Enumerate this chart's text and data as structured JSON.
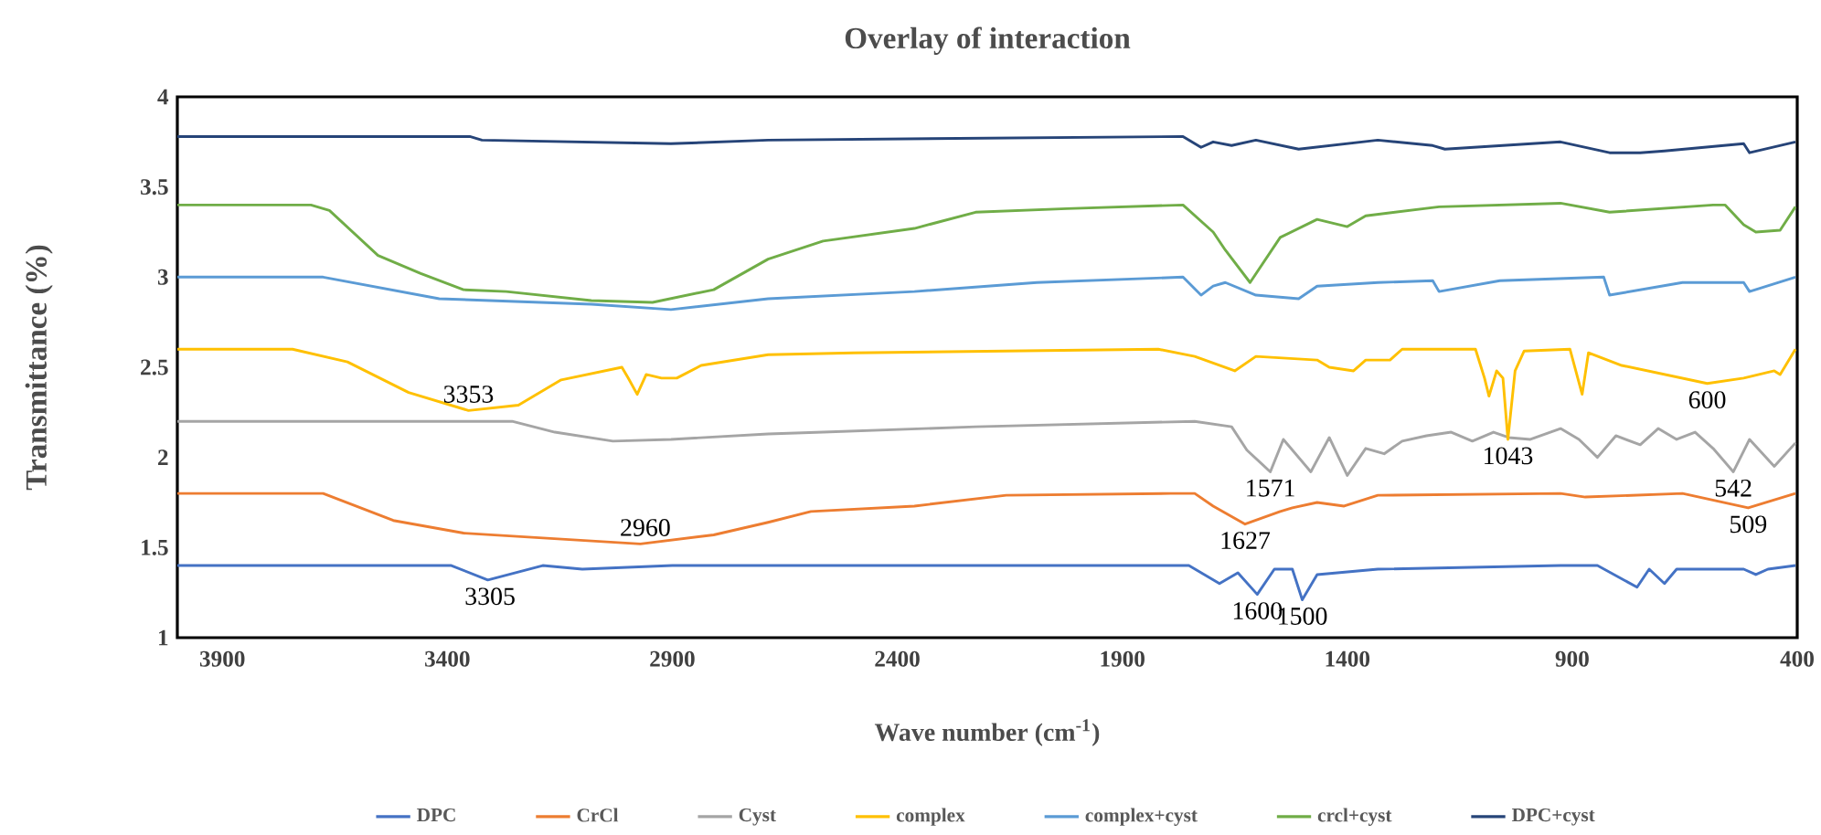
{
  "chart_data": {
    "type": "line",
    "title": "Overlay of interaction",
    "xlabel": "Wave number (cm$^{-1}$)",
    "ylabel": "Transmittance (%)",
    "xlim": [
      4000,
      400
    ],
    "xticks": [
      3900,
      3400,
      2900,
      2400,
      1900,
      1400,
      900,
      400
    ],
    "ylim": [
      1,
      4
    ],
    "yticks": [
      1,
      1.5,
      2,
      2.5,
      3,
      3.5,
      4
    ],
    "grid": false,
    "legend": "bottom",
    "marker": "none",
    "line_style": "solid",
    "series": [
      {
        "name": "DPC",
        "color": "#4472c4",
        "x": [
          4000,
          3391,
          3310,
          3188,
          3100,
          2900,
          1752,
          1684,
          1643,
          1600,
          1562,
          1522,
          1500,
          1467,
          1332,
          926,
          844,
          756,
          729,
          695,
          668,
          519,
          492,
          465,
          404
        ],
        "values": [
          1.4,
          1.4,
          1.32,
          1.4,
          1.38,
          1.4,
          1.4,
          1.3,
          1.36,
          1.24,
          1.38,
          1.38,
          1.21,
          1.35,
          1.38,
          1.4,
          1.4,
          1.28,
          1.38,
          1.3,
          1.38,
          1.38,
          1.35,
          1.38,
          1.4
        ]
      },
      {
        "name": "CrCl",
        "color": "#ed7d31",
        "x": [
          4000,
          3676,
          3520,
          3364,
          2971,
          2808,
          2687,
          2592,
          2362,
          2158,
          1792,
          1739,
          1698,
          1627,
          1549,
          1522,
          1467,
          1407,
          1332,
          926,
          871,
          655,
          509,
          404
        ],
        "values": [
          1.8,
          1.8,
          1.65,
          1.58,
          1.52,
          1.57,
          1.64,
          1.7,
          1.73,
          1.79,
          1.8,
          1.8,
          1.73,
          1.63,
          1.7,
          1.72,
          1.75,
          1.73,
          1.79,
          1.8,
          1.78,
          1.8,
          1.72,
          1.8
        ]
      },
      {
        "name": "Cyst",
        "color": "#a5a5a5",
        "x": [
          4000,
          3256,
          3161,
          3032,
          2903,
          2687,
          2565,
          2226,
          1739,
          1657,
          1623,
          1571,
          1542,
          1481,
          1440,
          1400,
          1359,
          1318,
          1278,
          1224,
          1169,
          1122,
          1075,
          1041,
          993,
          926,
          885,
          844,
          803,
          749,
          709,
          668,
          627,
          587,
          542,
          506,
          451,
          404
        ],
        "values": [
          2.2,
          2.2,
          2.14,
          2.09,
          2.1,
          2.13,
          2.14,
          2.17,
          2.2,
          2.17,
          2.04,
          1.92,
          2.1,
          1.92,
          2.11,
          1.9,
          2.05,
          2.02,
          2.09,
          2.12,
          2.14,
          2.09,
          2.14,
          2.11,
          2.1,
          2.16,
          2.1,
          2.0,
          2.12,
          2.07,
          2.16,
          2.1,
          2.14,
          2.05,
          1.92,
          2.1,
          1.95,
          2.08
        ]
      },
      {
        "name": "complex",
        "color": "#ffc000",
        "x": [
          4000,
          3744,
          3622,
          3486,
          3353,
          3242,
          3147,
          3012,
          2998,
          2978,
          2958,
          2924,
          2890,
          2836,
          2687,
          2497,
          1820,
          1739,
          1650,
          1603,
          1467,
          1440,
          1386,
          1359,
          1305,
          1278,
          1115,
          1095,
          1085,
          1068,
          1054,
          1043,
          1027,
          1007,
          905,
          878,
          864,
          790,
          600,
          519,
          451,
          438,
          404
        ],
        "values": [
          2.6,
          2.6,
          2.53,
          2.36,
          2.26,
          2.29,
          2.43,
          2.5,
          2.44,
          2.35,
          2.46,
          2.44,
          2.44,
          2.51,
          2.57,
          2.58,
          2.6,
          2.56,
          2.48,
          2.56,
          2.54,
          2.5,
          2.48,
          2.54,
          2.54,
          2.6,
          2.6,
          2.44,
          2.34,
          2.48,
          2.44,
          2.1,
          2.48,
          2.59,
          2.6,
          2.35,
          2.58,
          2.51,
          2.41,
          2.44,
          2.48,
          2.46,
          2.6
        ]
      },
      {
        "name": "complex+cyst",
        "color": "#5b9bd5",
        "x": [
          4000,
          3676,
          3418,
          3080,
          2903,
          2687,
          2362,
          2090,
          1765,
          1725,
          1698,
          1671,
          1603,
          1508,
          1467,
          1332,
          1210,
          1196,
          1061,
          830,
          817,
          655,
          519,
          506,
          404
        ],
        "values": [
          3.0,
          3.0,
          2.88,
          2.85,
          2.82,
          2.88,
          2.92,
          2.97,
          3.0,
          2.9,
          2.95,
          2.97,
          2.9,
          2.88,
          2.95,
          2.97,
          2.98,
          2.92,
          2.98,
          3.0,
          2.9,
          2.97,
          2.97,
          2.92,
          3.0
        ]
      },
      {
        "name": "crcl+cyst",
        "color": "#70ad47",
        "x": [
          4000,
          3703,
          3662,
          3554,
          3459,
          3364,
          3269,
          3080,
          2944,
          2808,
          2687,
          2565,
          2362,
          2226,
          2023,
          1765,
          1698,
          1671,
          1616,
          1549,
          1467,
          1400,
          1359,
          1196,
          926,
          817,
          587,
          560,
          519,
          492,
          438,
          404
        ],
        "values": [
          3.4,
          3.4,
          3.37,
          3.12,
          3.02,
          2.93,
          2.92,
          2.87,
          2.86,
          2.93,
          3.1,
          3.2,
          3.27,
          3.36,
          3.38,
          3.4,
          3.25,
          3.15,
          2.97,
          3.22,
          3.32,
          3.28,
          3.34,
          3.39,
          3.41,
          3.36,
          3.4,
          3.4,
          3.29,
          3.25,
          3.26,
          3.39
        ]
      },
      {
        "name": "DPC+cyst",
        "color": "#264478",
        "x": [
          4000,
          3350,
          3323,
          2903,
          2687,
          1765,
          1725,
          1698,
          1657,
          1603,
          1508,
          1332,
          1210,
          1183,
          926,
          817,
          749,
          695,
          519,
          506,
          404
        ],
        "values": [
          3.78,
          3.78,
          3.76,
          3.74,
          3.76,
          3.78,
          3.72,
          3.75,
          3.73,
          3.76,
          3.71,
          3.76,
          3.73,
          3.71,
          3.75,
          3.69,
          3.69,
          3.7,
          3.74,
          3.69,
          3.75
        ]
      }
    ],
    "annotations": [
      {
        "text": "3353",
        "x": 3353,
        "y": 2.26
      },
      {
        "text": "2960",
        "x": 2960,
        "y": 1.52
      },
      {
        "text": "3305",
        "x": 3305,
        "y": 1.32
      },
      {
        "text": "1571",
        "x": 1571,
        "y": 1.92
      },
      {
        "text": "1043",
        "x": 1043,
        "y": 2.1
      },
      {
        "text": "600",
        "x": 600,
        "y": 2.41
      },
      {
        "text": "542",
        "x": 542,
        "y": 1.92
      },
      {
        "text": "1627",
        "x": 1627,
        "y": 1.63
      },
      {
        "text": "509",
        "x": 509,
        "y": 1.72
      },
      {
        "text": "1600",
        "x": 1600,
        "y": 1.24
      },
      {
        "text": "1500",
        "x": 1500,
        "y": 1.21
      }
    ]
  }
}
